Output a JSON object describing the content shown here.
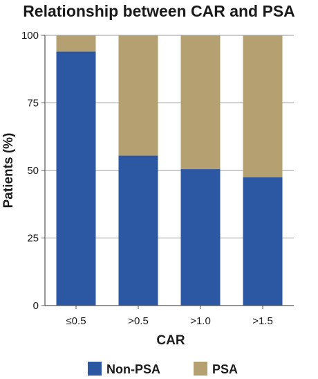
{
  "chart_data": {
    "type": "bar",
    "stacked": true,
    "title": "Relationship between CAR and PSA",
    "xlabel": "CAR",
    "ylabel": "Patients (%)",
    "categories": [
      "≤0.5",
      ">0.5",
      ">1.0",
      ">1.5"
    ],
    "series": [
      {
        "name": "Non-PSA",
        "color": "#2b57a3",
        "values": [
          94,
          55.5,
          50.5,
          47.5
        ]
      },
      {
        "name": "PSA",
        "color": "#b5a072",
        "values": [
          6,
          44.5,
          49.5,
          52.5
        ]
      }
    ],
    "ylim": [
      0,
      100
    ],
    "yticks": [
      0,
      25,
      50,
      75,
      100
    ],
    "grid": true,
    "legend_position": "bottom"
  }
}
